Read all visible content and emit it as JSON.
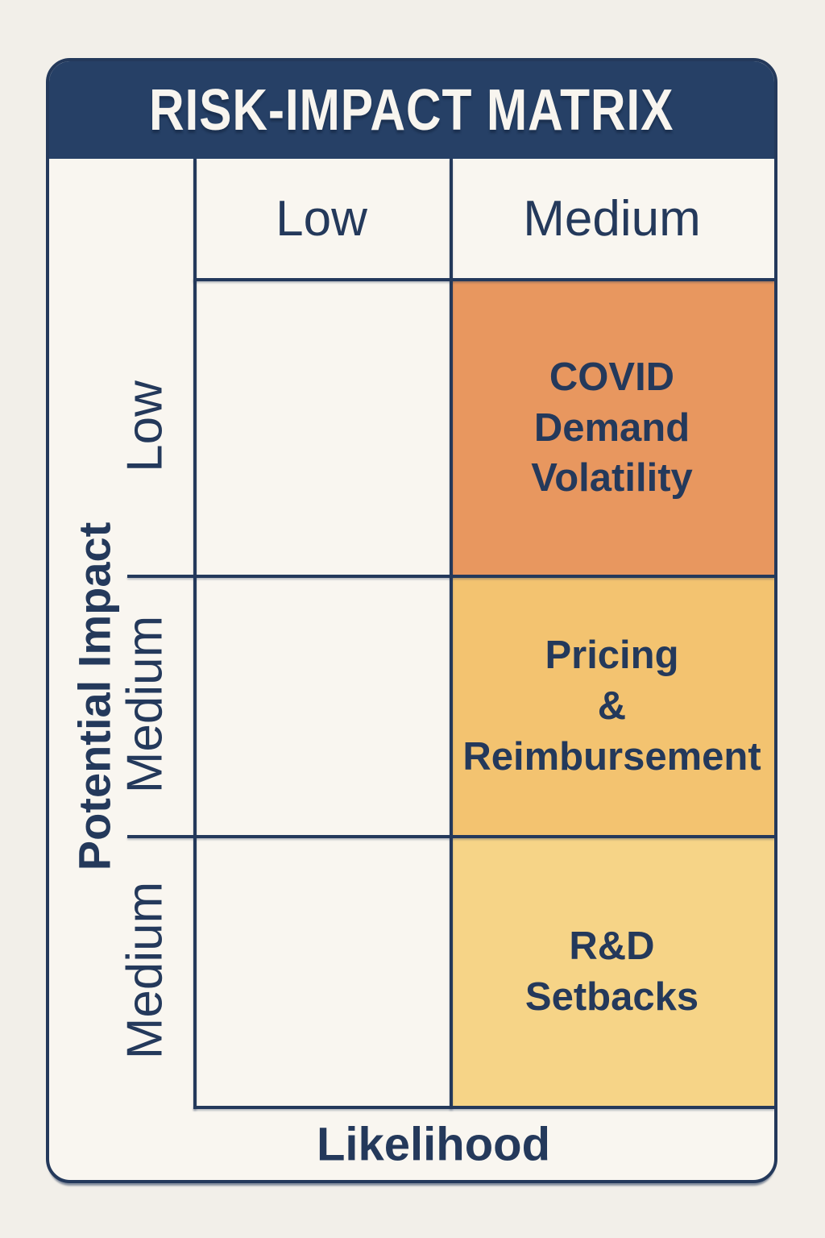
{
  "header": {
    "title": "RISK-IMPACT MATRIX",
    "background": "#264066",
    "text_color": "#F8F5EF"
  },
  "matrix": {
    "x_axis_label": "Likelihood",
    "y_axis_label": "Potential Impact",
    "column_headers": [
      "Low",
      "Medium"
    ],
    "row_labels": [
      "Low",
      "Medium",
      "Medium"
    ],
    "cells": [
      {
        "row_label": "Low",
        "column_label": "Medium",
        "text": "COVID\nDemand\nVolatility",
        "color": "#E8975F"
      },
      {
        "row_label": "Medium",
        "column_label": "Medium",
        "text": "Pricing\n&\nReimbursement",
        "color": "#F3C370"
      },
      {
        "row_label": "Medium",
        "column_label": "Medium",
        "text": "R&D\nSetbacks",
        "color": "#F6D487"
      }
    ]
  },
  "colors": {
    "page_background": "#F2EFE9",
    "card_background": "#F9F6F0",
    "line_navy": "#24395B",
    "text_navy": "#24395B"
  }
}
